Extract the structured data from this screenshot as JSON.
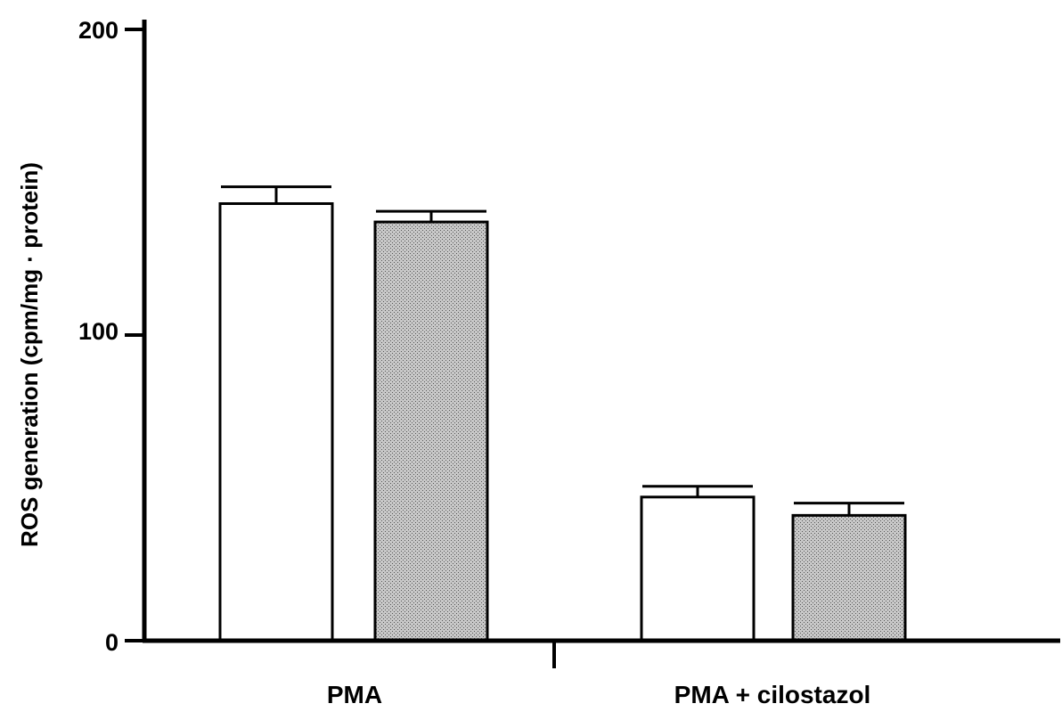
{
  "chart_data": {
    "type": "bar",
    "title": "",
    "xlabel": "",
    "ylabel": "ROS generation (cpm/mg · protein)",
    "ylim": [
      0,
      200
    ],
    "yticks": [
      0,
      100,
      200
    ],
    "ytick_labels": [
      "0",
      "100",
      "200"
    ],
    "categories": [
      "PMA",
      "PMA + cilostazol"
    ],
    "grid": false,
    "legend": "none",
    "series": [
      {
        "fill": "open",
        "values": [
          143,
          47
        ],
        "errors": [
          5.5,
          3.5
        ]
      },
      {
        "fill": "stippled",
        "values": [
          137,
          41
        ],
        "errors": [
          3.5,
          4
        ]
      }
    ],
    "colors": {
      "axis": "#000000",
      "open_fill": "#ffffff",
      "stippled_fill": "#c8c8c8",
      "stipple_dot": "#555555"
    }
  }
}
